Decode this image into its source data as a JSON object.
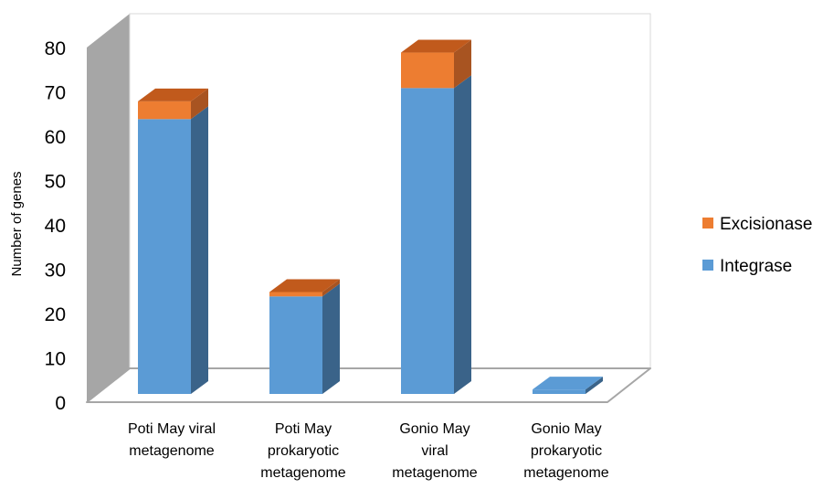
{
  "chart_data": {
    "type": "bar",
    "stacked": true,
    "three_d": true,
    "categories": [
      [
        "Poti May viral",
        "metagenome"
      ],
      [
        "Poti May",
        "prokaryotic",
        "metagenome"
      ],
      [
        "Gonio May",
        "viral",
        "metagenome"
      ],
      [
        "Gonio May",
        "prokaryotic",
        "metagenome"
      ]
    ],
    "series": [
      {
        "name": "Integrase",
        "values": [
          62,
          22,
          69,
          1
        ],
        "color": "#5B9BD5",
        "side_color": "#3A6389",
        "top_color": "#5B9BD5"
      },
      {
        "name": "Excisionase",
        "values": [
          4,
          1,
          8,
          0
        ],
        "color": "#ED7D31",
        "side_color": "#A85421",
        "top_color": "#C15A1C"
      }
    ],
    "ylabel": "Number of genes",
    "xlabel": "",
    "ylim": [
      0,
      80
    ],
    "yticks": [
      0,
      10,
      20,
      30,
      40,
      50,
      60,
      70,
      80
    ],
    "legend_position": "right",
    "legend_order": [
      "Excisionase",
      "Integrase"
    ],
    "grid": false
  }
}
